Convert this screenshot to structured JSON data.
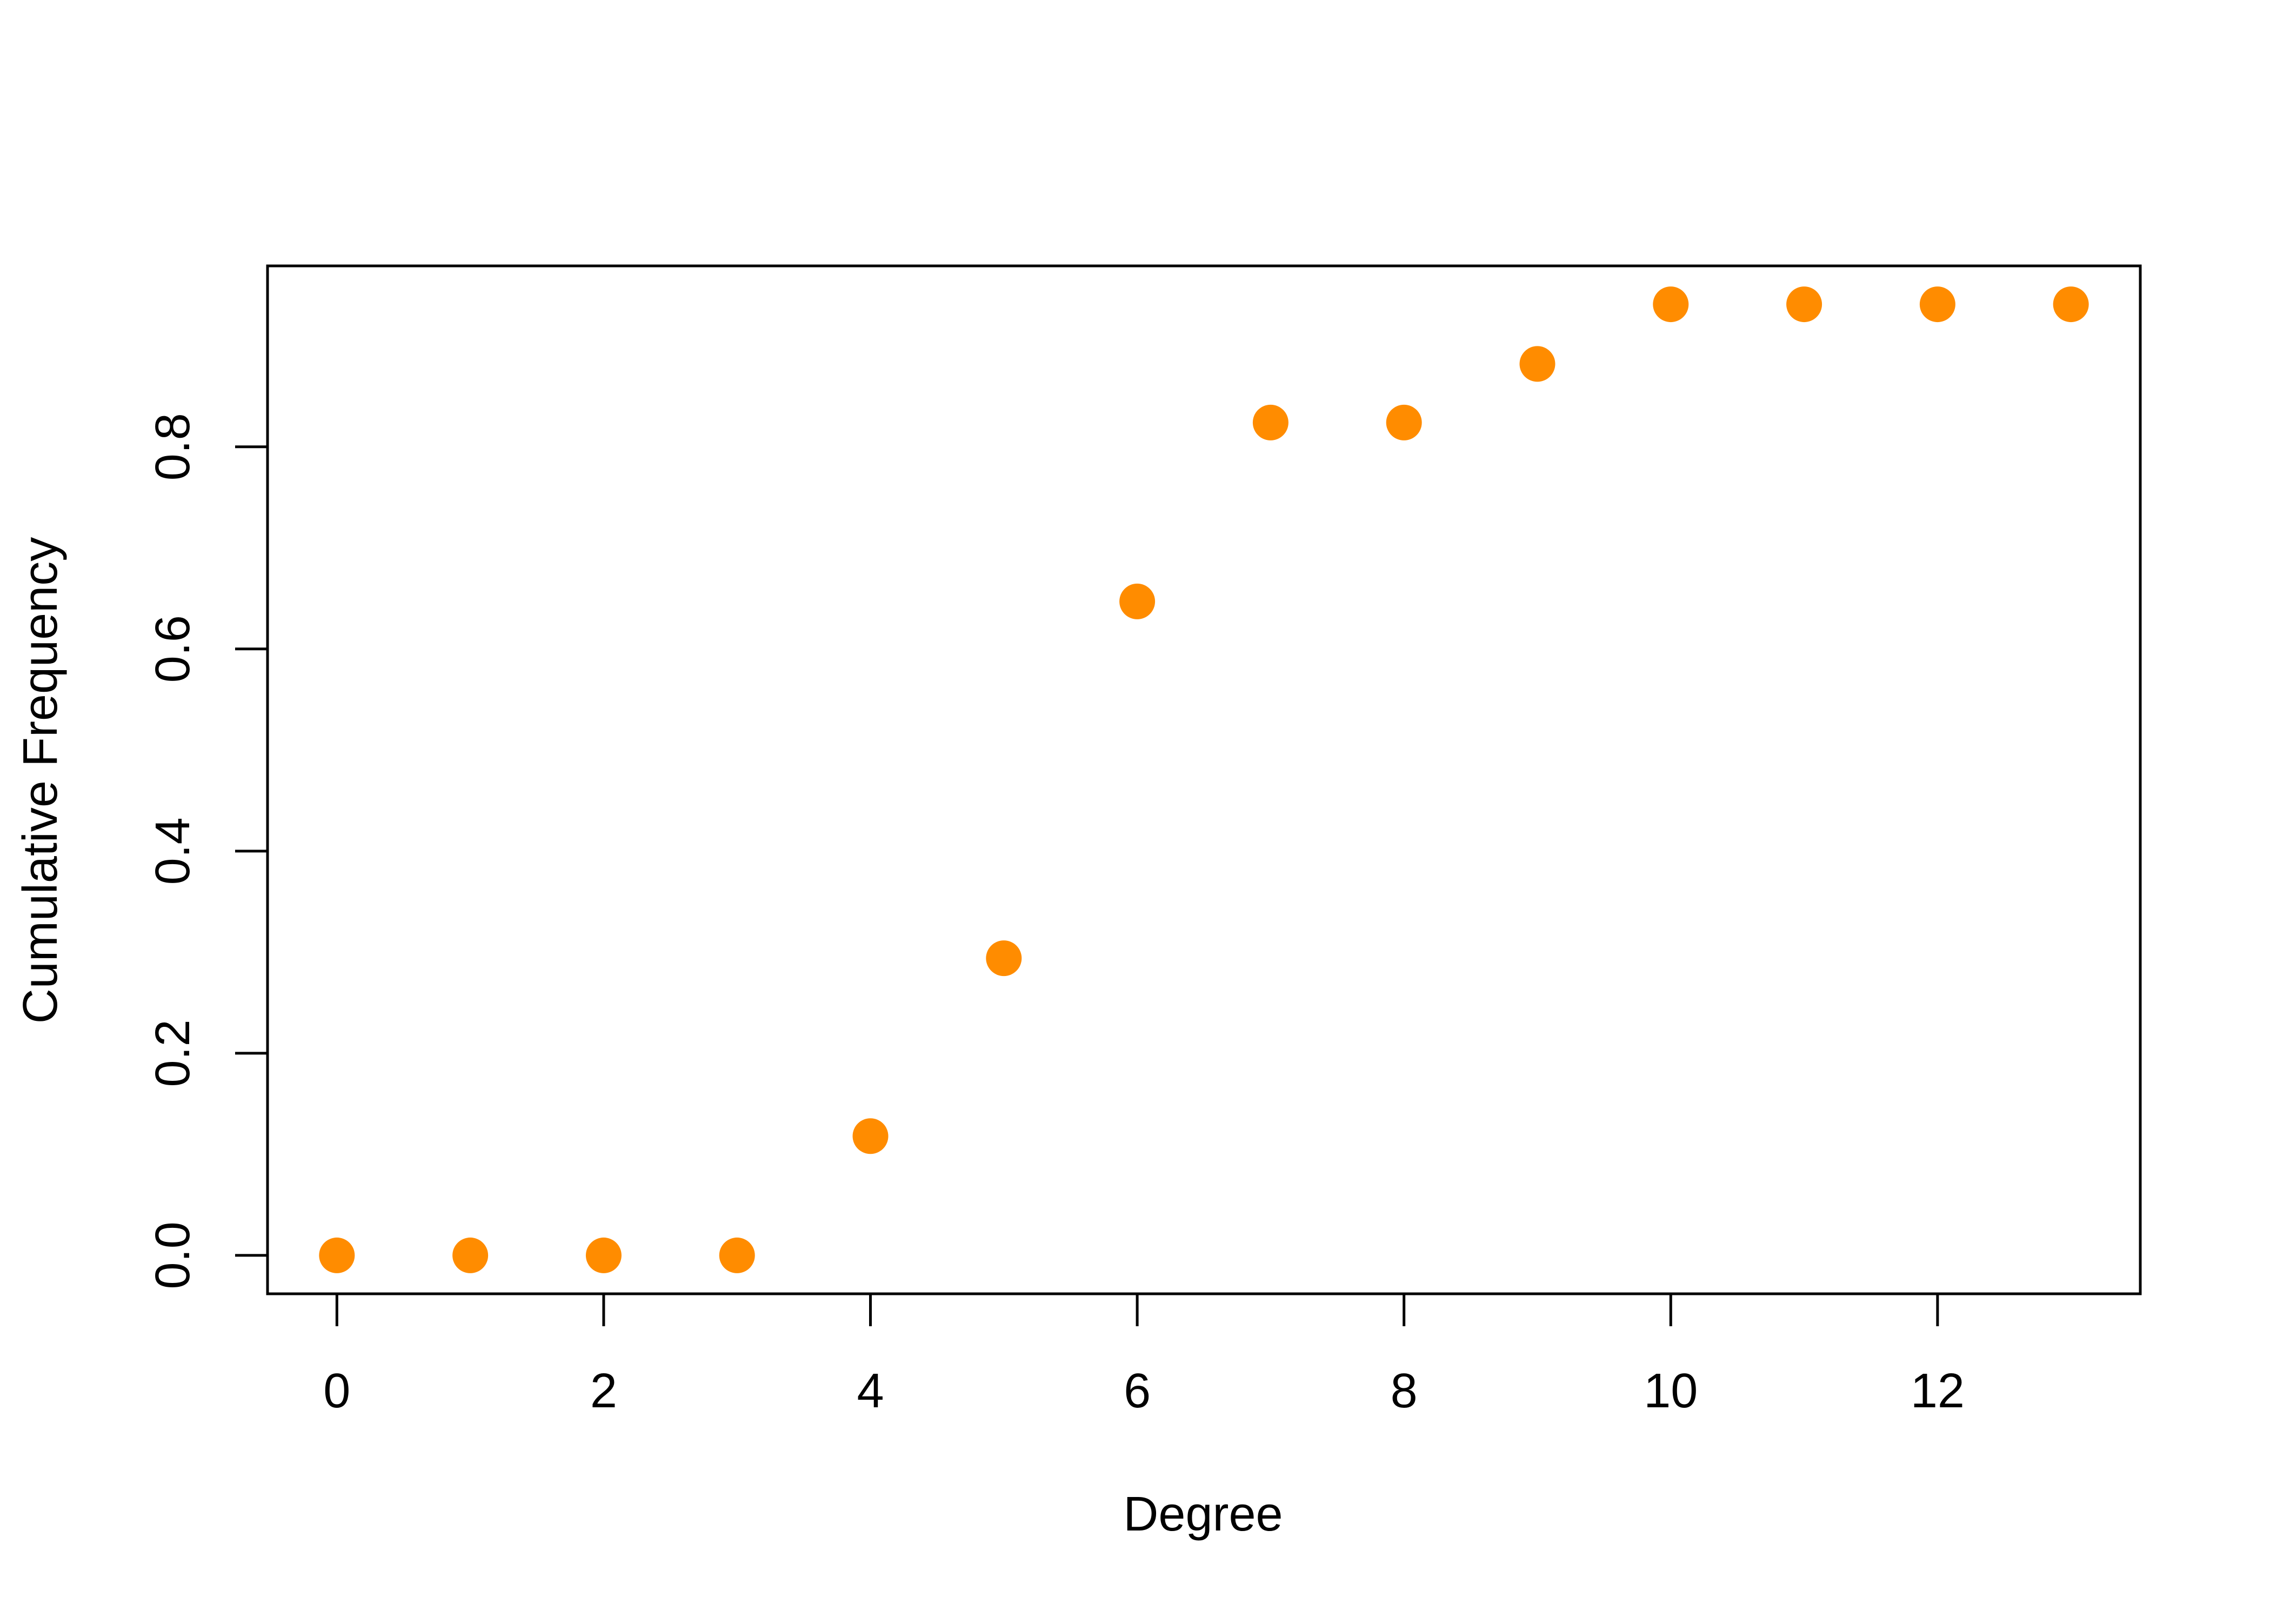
{
  "chart_data": {
    "type": "scatter",
    "title": "",
    "xlabel": "Degree",
    "ylabel": "Cumulative Frequency",
    "x": [
      0,
      1,
      2,
      3,
      4,
      5,
      6,
      7,
      8,
      9,
      10,
      11,
      12,
      13
    ],
    "y": [
      0.0,
      0.0,
      0.0,
      0.0,
      0.118,
      0.294,
      0.647,
      0.824,
      0.824,
      0.882,
      0.941,
      0.941,
      0.941,
      0.941
    ],
    "xlim": [
      -0.52,
      13.52
    ],
    "ylim": [
      -0.038,
      0.979
    ],
    "xticks": [
      0,
      2,
      4,
      6,
      8,
      10,
      12
    ],
    "xtick_labels": [
      "0",
      "2",
      "4",
      "6",
      "8",
      "10",
      "12"
    ],
    "yticks": [
      0.0,
      0.2,
      0.4,
      0.6,
      0.8
    ],
    "ytick_labels": [
      "0.0",
      "0.2",
      "0.4",
      "0.6",
      "0.8"
    ],
    "grid": false,
    "legend": "none",
    "colors": {
      "marker": "#ff8c00",
      "axis": "#000000",
      "background": "#ffffff"
    }
  }
}
